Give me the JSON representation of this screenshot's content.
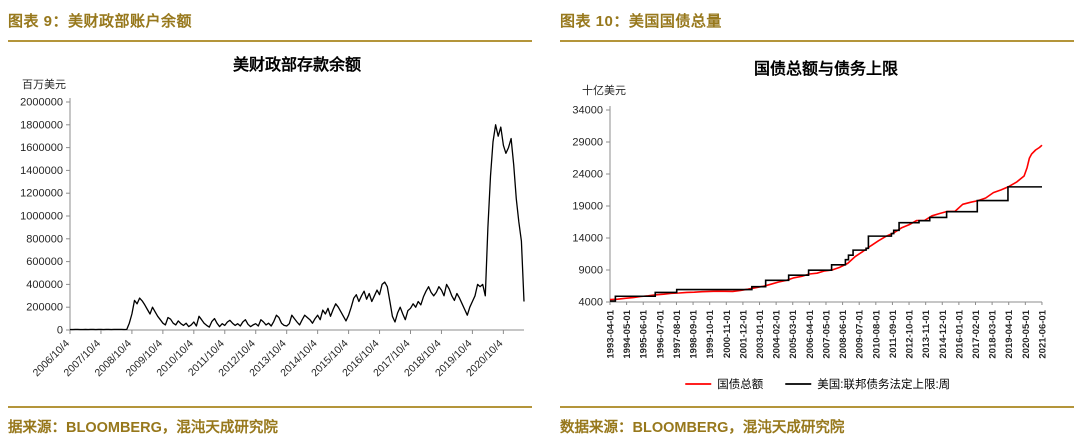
{
  "colors": {
    "gold_text": "#97781c",
    "gold_line": "#b4953a",
    "red_series": "#ff0000",
    "black_series": "#000000",
    "axis": "#8c8c8c",
    "tick_text": "#262626",
    "title_text": "#000000"
  },
  "figures": [
    {
      "header": "图表 9：美财政部账户余额",
      "source": "据来源：BLOOMBERG，混沌天成研究院"
    },
    {
      "header": "图表 10：美国国债总量",
      "source": "数据来源：BLOOMBERG，混沌天成研究院"
    }
  ],
  "chart_data": [
    {
      "type": "line",
      "title": "美财政部存款余额",
      "ylabel": "百万美元",
      "ylim": [
        0,
        2000000
      ],
      "ytick_step": 200000,
      "grid": false,
      "legend": false,
      "x_tick_labels": [
        "2006/10/4",
        "2007/10/4",
        "2008/10/4",
        "2009/10/4",
        "2010/10/4",
        "2011/10/4",
        "2012/10/4",
        "2013/10/4",
        "2014/10/4",
        "2015/10/4",
        "2016/10/4",
        "2017/10/4",
        "2018/10/4",
        "2019/10/4",
        "2020/10/4"
      ],
      "x_tick_indices": [
        0,
        12,
        24,
        36,
        48,
        60,
        72,
        84,
        96,
        108,
        120,
        132,
        144,
        156,
        168
      ],
      "series": [
        {
          "name": "美财政部存款余额",
          "color": "#000000",
          "values": [
            4000,
            4500,
            5000,
            5000,
            4500,
            4200,
            5500,
            4800,
            5100,
            5300,
            4600,
            5200,
            4900,
            4500,
            5000,
            5200,
            4800,
            5100,
            4900,
            5300,
            5000,
            4700,
            5200,
            60000,
            140000,
            260000,
            230000,
            280000,
            255000,
            220000,
            180000,
            140000,
            200000,
            160000,
            120000,
            90000,
            60000,
            45000,
            110000,
            95000,
            60000,
            45000,
            80000,
            55000,
            40000,
            60000,
            30000,
            45000,
            70000,
            35000,
            120000,
            90000,
            60000,
            40000,
            25000,
            75000,
            100000,
            60000,
            30000,
            55000,
            40000,
            70000,
            85000,
            60000,
            40000,
            55000,
            35000,
            70000,
            90000,
            50000,
            30000,
            45000,
            55000,
            35000,
            90000,
            70000,
            45000,
            60000,
            35000,
            75000,
            130000,
            110000,
            60000,
            40000,
            35000,
            55000,
            130000,
            100000,
            70000,
            45000,
            90000,
            130000,
            110000,
            90000,
            60000,
            100000,
            130000,
            90000,
            175000,
            140000,
            190000,
            120000,
            180000,
            230000,
            200000,
            160000,
            120000,
            80000,
            130000,
            200000,
            280000,
            310000,
            250000,
            300000,
            340000,
            270000,
            320000,
            250000,
            300000,
            350000,
            310000,
            400000,
            420000,
            380000,
            250000,
            120000,
            70000,
            150000,
            200000,
            140000,
            90000,
            170000,
            190000,
            230000,
            200000,
            250000,
            220000,
            290000,
            340000,
            380000,
            330000,
            300000,
            330000,
            380000,
            350000,
            300000,
            400000,
            360000,
            300000,
            260000,
            320000,
            280000,
            230000,
            180000,
            130000,
            200000,
            250000,
            300000,
            400000,
            380000,
            400000,
            300000,
            900000,
            1350000,
            1650000,
            1800000,
            1700000,
            1780000,
            1620000,
            1550000,
            1600000,
            1680000,
            1450000,
            1150000,
            950000,
            780000,
            250000
          ]
        }
      ]
    },
    {
      "type": "line",
      "title": "国债总额与债务上限",
      "ylabel": "十亿美元",
      "ylim": [
        4000,
        34000
      ],
      "ytick_step": 5000,
      "xlim": [
        1993.25,
        2021.42
      ],
      "grid": false,
      "legend_position": "bottom",
      "x_tick_labels": [
        "1993-04-01",
        "1994-05-01",
        "1995-06-01",
        "1996-07-01",
        "1997-08-01",
        "1998-09-01",
        "1999-10-01",
        "2000-11-01",
        "2001-12-01",
        "2003-01-01",
        "2004-02-01",
        "2005-03-01",
        "2006-04-01",
        "2007-05-01",
        "2008-06-01",
        "2009-07-01",
        "2010-08-01",
        "2011-09-01",
        "2012-10-01",
        "2013-11-01",
        "2014-12-01",
        "2016-01-01",
        "2017-02-01",
        "2018-03-01",
        "2019-04-01",
        "2020-05-01",
        "2021-06-01"
      ],
      "series": [
        {
          "name": "国债总额",
          "color": "#ff0000",
          "step": false,
          "x": [
            1993.25,
            1993.75,
            1994.25,
            1994.75,
            1995.25,
            1995.75,
            1996.25,
            1996.75,
            1997.25,
            1997.75,
            1998.25,
            1998.75,
            1999.25,
            1999.75,
            2000.25,
            2000.75,
            2001.25,
            2001.75,
            2002.25,
            2002.75,
            2003.25,
            2003.75,
            2004.25,
            2004.75,
            2005.25,
            2005.75,
            2006.25,
            2006.75,
            2007.25,
            2007.75,
            2008.25,
            2008.75,
            2009.25,
            2009.75,
            2010.25,
            2010.75,
            2011.25,
            2011.75,
            2012.25,
            2012.75,
            2013.25,
            2013.75,
            2014.25,
            2014.75,
            2015.25,
            2015.75,
            2016.25,
            2016.75,
            2017.25,
            2017.75,
            2018.25,
            2018.75,
            2019.25,
            2019.75,
            2020.25,
            2020.45,
            2020.6,
            2020.75,
            2021.0,
            2021.25,
            2021.42
          ],
          "values": [
            4370,
            4440,
            4576,
            4693,
            4864,
            4974,
            5118,
            5225,
            5354,
            5413,
            5499,
            5526,
            5615,
            5656,
            5686,
            5674,
            5661,
            5807,
            6006,
            6228,
            6460,
            6783,
            7131,
            7379,
            7777,
            8003,
            8371,
            8507,
            8867,
            9008,
            9438,
            10025,
            11127,
            11910,
            12773,
            13562,
            14270,
            14790,
            15582,
            16066,
            16738,
            16738,
            17472,
            17824,
            18152,
            18152,
            19265,
            19573,
            19846,
            20245,
            21090,
            21516,
            22028,
            22719,
            23687,
            25000,
            26477,
            27137,
            27748,
            28133,
            28500
          ]
        },
        {
          "name": "美国:联邦债务法定上限:周",
          "color": "#000000",
          "step": true,
          "x": [
            1993.25,
            1993.6,
            1996.2,
            1997.6,
            2002.5,
            2003.4,
            2004.9,
            2006.2,
            2007.7,
            2008.6,
            2008.8,
            2009.1,
            2009.95,
            2010.1,
            2011.6,
            2011.75,
            2012.1,
            2013.4,
            2014.1,
            2015.2,
            2017.2,
            2019.2,
            2021.42
          ],
          "values": [
            4145,
            4900,
            5500,
            5950,
            6400,
            7384,
            8184,
            8965,
            9815,
            10615,
            11315,
            12104,
            12394,
            14294,
            14694,
            15194,
            16394,
            16699,
            17212,
            18113,
            19847,
            21988,
            21988
          ]
        }
      ]
    }
  ]
}
